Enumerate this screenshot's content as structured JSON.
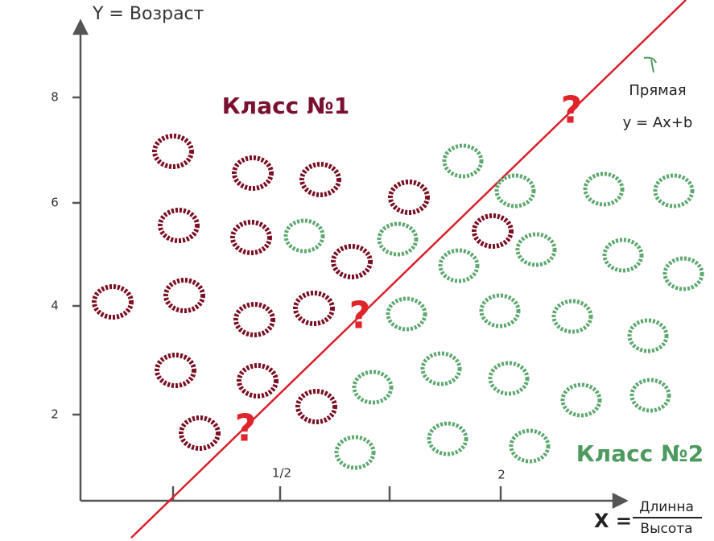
{
  "y_axis": {
    "label": "Y = Возраст",
    "ticks": [
      "8",
      "6",
      "4",
      "2"
    ]
  },
  "x_axis": {
    "label": "X =",
    "fraction": {
      "numerator": "Длинна",
      "denominator": "Высота"
    },
    "ticks": [
      "1/2",
      "2"
    ]
  },
  "classes": [
    {
      "label": "Класс №1"
    },
    {
      "label": "Класс №2"
    }
  ],
  "line": {
    "label": "Прямая",
    "equation": "y = Ax+b"
  },
  "unknown_marks": [
    "?",
    "?",
    "?"
  ]
}
